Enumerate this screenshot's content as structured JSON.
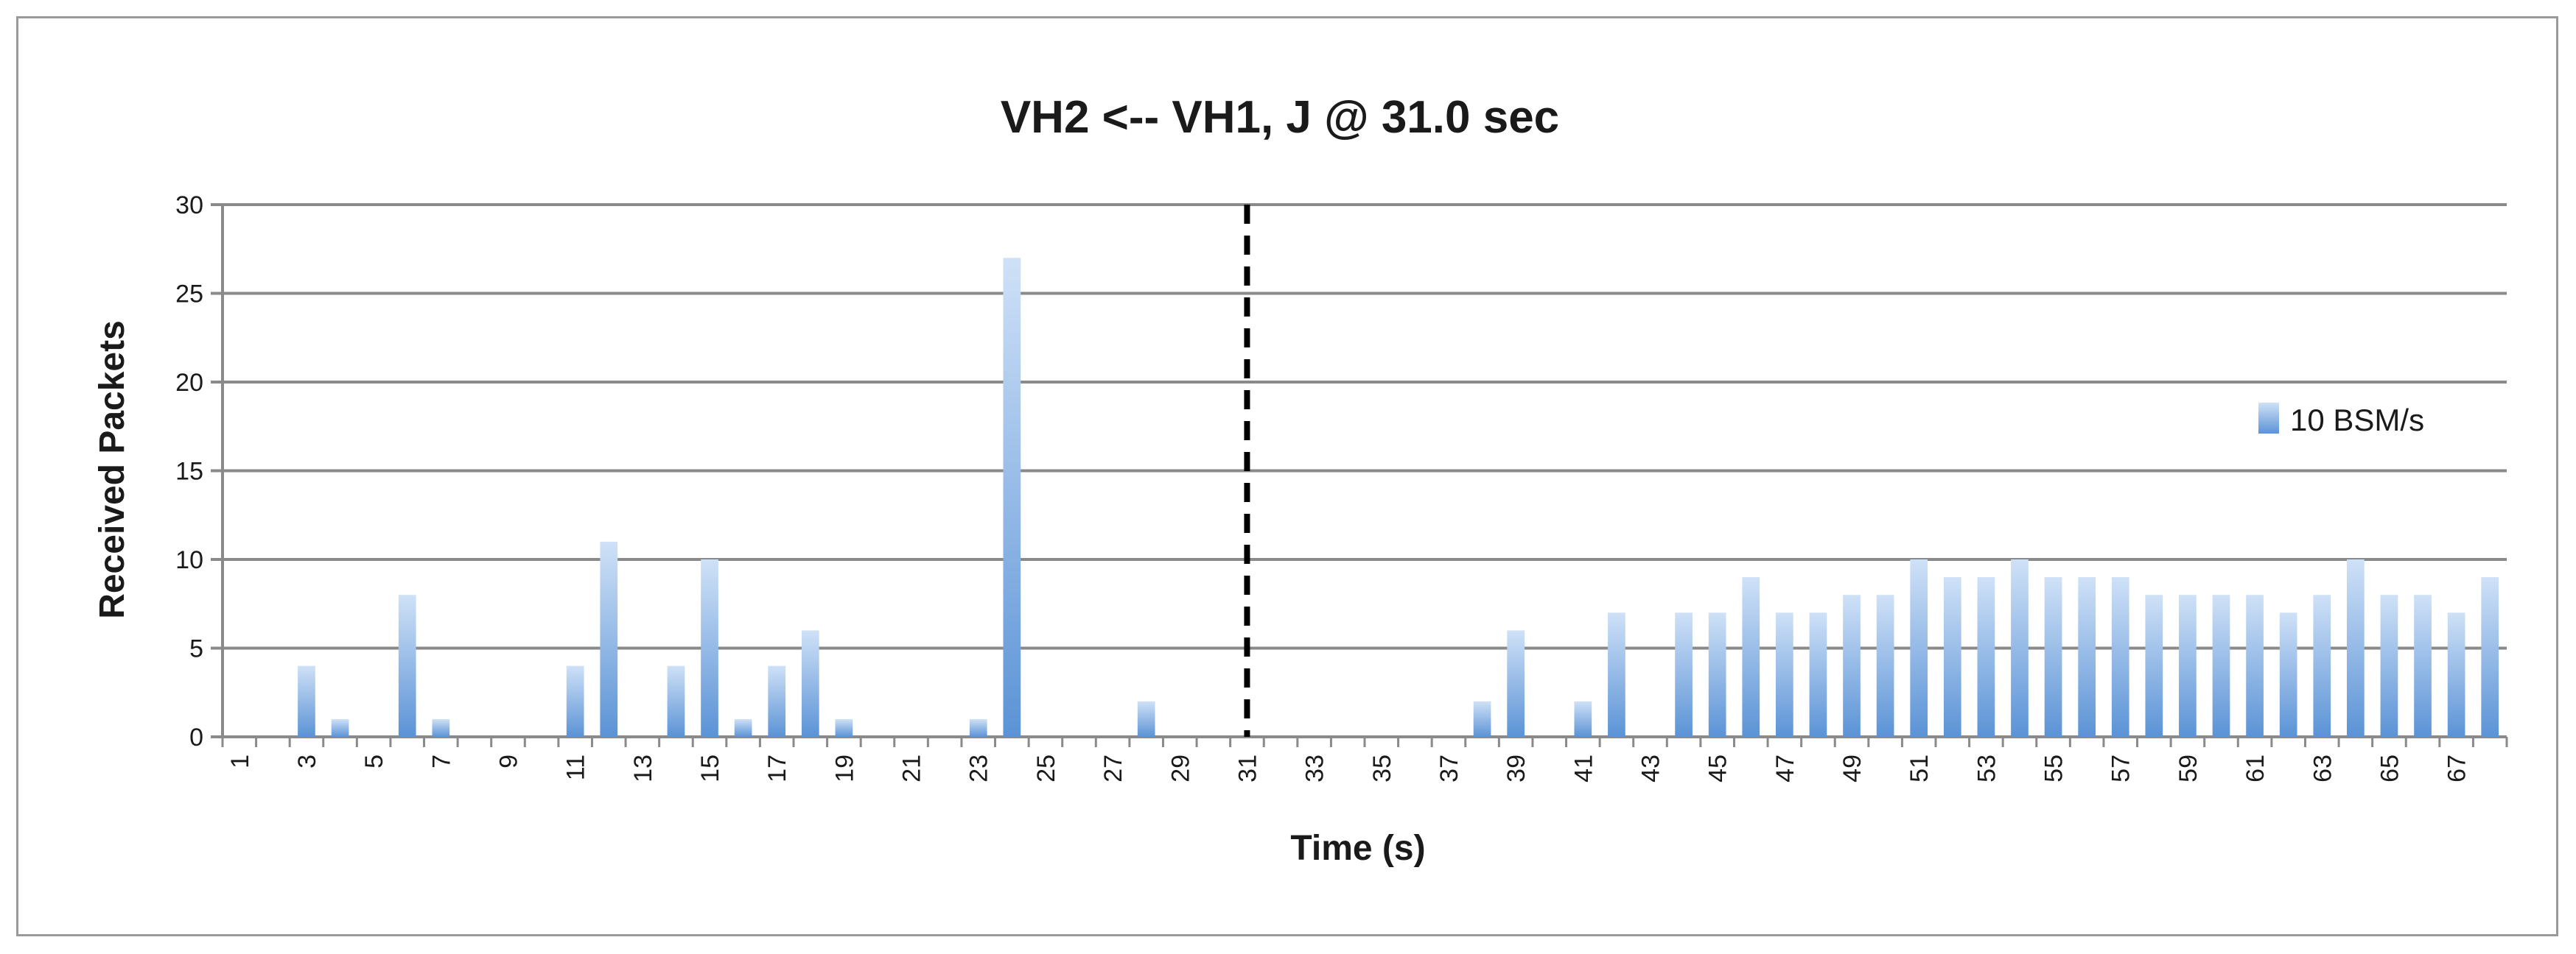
{
  "chart_data": {
    "type": "bar",
    "title": "VH2 <-- VH1, J @ 31.0 sec",
    "xlabel": "Time (s)",
    "ylabel": "Received Packets",
    "ylim": [
      0,
      30
    ],
    "yticks": [
      "0",
      "5",
      "10",
      "15",
      "20",
      "25",
      "30"
    ],
    "xticks": [
      "1",
      "3",
      "5",
      "7",
      "9",
      "11",
      "13",
      "15",
      "17",
      "19",
      "21",
      "23",
      "25",
      "27",
      "29",
      "31",
      "33",
      "35",
      "37",
      "39",
      "41",
      "43",
      "45",
      "47",
      "49",
      "51",
      "53",
      "55",
      "57",
      "59",
      "61",
      "63",
      "65",
      "67"
    ],
    "grid": true,
    "legend_position": "right",
    "colors": {
      "bar_top": "#cfe1f7",
      "bar_bottom": "#5b93d6",
      "grid": "#8a8a8a",
      "marker": "#000000"
    },
    "categories": [
      1,
      2,
      3,
      4,
      5,
      6,
      7,
      8,
      9,
      10,
      11,
      12,
      13,
      14,
      15,
      16,
      17,
      18,
      19,
      20,
      21,
      22,
      23,
      24,
      25,
      26,
      27,
      28,
      29,
      30,
      31,
      32,
      33,
      34,
      35,
      36,
      37,
      38,
      39,
      40,
      41,
      42,
      43,
      44,
      45,
      46,
      47,
      48,
      49,
      50,
      51,
      52,
      53,
      54,
      55,
      56,
      57,
      58,
      59,
      60,
      61,
      62,
      63,
      64,
      65,
      66,
      67,
      68
    ],
    "series": [
      {
        "name": "10 BSM/s",
        "values": [
          0,
          0,
          4,
          1,
          0,
          8,
          1,
          0,
          0,
          0,
          4,
          11,
          0,
          4,
          10,
          1,
          4,
          6,
          1,
          0,
          0,
          0,
          1,
          27,
          0,
          0,
          0,
          2,
          0,
          0,
          0,
          0,
          0,
          0,
          0,
          0,
          0,
          2,
          6,
          0,
          2,
          7,
          0,
          7,
          7,
          9,
          7,
          7,
          8,
          8,
          10,
          9,
          9,
          10,
          9,
          9,
          9,
          8,
          8,
          8,
          8,
          7,
          8,
          10,
          8,
          8,
          7,
          9
        ]
      }
    ],
    "annotations": [
      {
        "type": "vertical-dashed-line",
        "x": 31
      }
    ]
  }
}
